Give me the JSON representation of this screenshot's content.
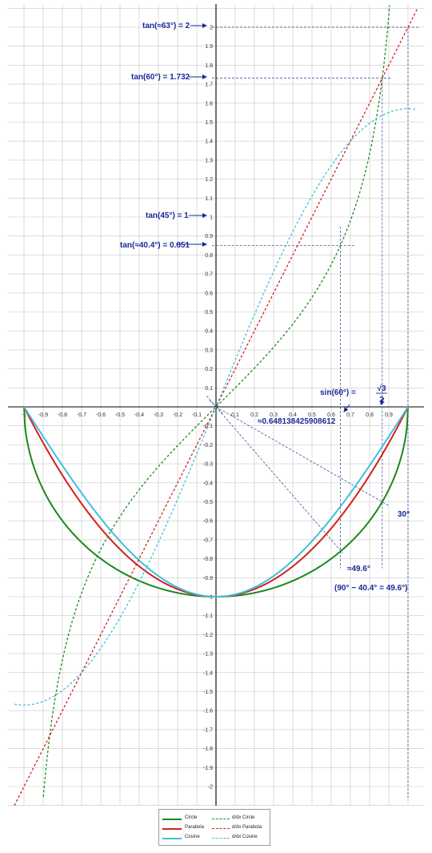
{
  "chart_data": {
    "type": "line",
    "xlim": [
      -1.05,
      1.05
    ],
    "ylim": [
      -2.15,
      2.1
    ],
    "x_ticks": [
      -1,
      -0.9,
      -0.8,
      -0.7,
      -0.6,
      -0.5,
      -0.4,
      -0.3,
      -0.2,
      -0.1,
      0.1,
      0.2,
      0.3,
      0.4,
      0.5,
      0.6,
      0.7,
      0.8,
      0.9,
      1
    ],
    "x_tick_labels": [
      "-1",
      "-0.9",
      "-0.8",
      "-0.7",
      "-0.6",
      "-0.5",
      "-0.4",
      "-0.3",
      "-0.2",
      "-0.1",
      "0.1",
      "0.2",
      "0.3",
      "0.4",
      "0.5",
      "0.6",
      "0.7",
      "0.8",
      "0.9",
      "1"
    ],
    "y_ticks": [
      2,
      1.9,
      1.8,
      1.7,
      1.6,
      1.5,
      1.4,
      1.3,
      1.2,
      1.1,
      1,
      0.9,
      0.8,
      0.7,
      0.6,
      0.5,
      0.4,
      0.3,
      0.2,
      0.1,
      -0.1,
      -0.2,
      -0.3,
      -0.4,
      -0.5,
      -0.6,
      -0.7,
      -0.8,
      -0.9,
      -1,
      -1.1,
      -1.2,
      -1.3,
      -1.4,
      -1.5,
      -1.6,
      -1.7,
      -1.8,
      -1.9,
      -2
    ],
    "y_tick_labels": [
      "2",
      "1.9",
      "1.8",
      "1.7",
      "1.6",
      "1.5",
      "1.4",
      "1.3",
      "1.2",
      "1.1",
      "1",
      "0.9",
      "0.8",
      "0.7",
      "0.6",
      "0.5",
      "0.4",
      "0.3",
      "0.2",
      "0.1",
      "-0.1",
      "-0.2",
      "-0.3",
      "-0.4",
      "-0.5",
      "-0.6",
      "-0.7",
      "-0.8",
      "-0.9",
      "-1",
      "-1.1",
      "-1.2",
      "-1.3",
      "-1.4",
      "-1.5",
      "-1.6",
      "-1.7",
      "-1.8",
      "-1.9",
      "-2"
    ],
    "grid": true,
    "legend_placement": "bottom-center",
    "series": [
      {
        "name": "Circle",
        "color": "#1a8a1a",
        "style": "solid",
        "formula": "y = -sqrt(1 - x^2)"
      },
      {
        "name": "Parabola",
        "color": "#d42020",
        "style": "solid",
        "formula": "y = x^2 - 1"
      },
      {
        "name": "Cosine",
        "color": "#40c0d8",
        "style": "solid",
        "formula": "y = -cos(pi*x/2)"
      },
      {
        "name": "d/dx Circle",
        "color": "#1a8a1a",
        "style": "dashed",
        "formula": "y = x / sqrt(1 - x^2)"
      },
      {
        "name": "d/dx Parabola",
        "color": "#d42020",
        "style": "dashed",
        "formula": "y = 2x"
      },
      {
        "name": "d/dx Cosine",
        "color": "#40c0d8",
        "style": "dashed",
        "formula": "y = (pi/2) sin(pi*x/2)"
      }
    ],
    "annotations": [
      {
        "text": "tan(≈63°) = 2",
        "y": 2
      },
      {
        "text": "tan(60°) = 1.732",
        "y": 1.732
      },
      {
        "text": "tan(45°) = 1",
        "y": 1
      },
      {
        "text": "tan(≈40.4°) = 0.851",
        "y": 0.851
      },
      {
        "text": "sin(60°) =",
        "x": 0.866
      },
      {
        "text": "√3",
        "x": 0.866
      },
      {
        "text": "2",
        "x": 0.866
      },
      {
        "text": "≈0.648138425908612",
        "x": 0.648
      },
      {
        "text": "30°"
      },
      {
        "text": "≈49.6°"
      },
      {
        "text": "(90° − 40.4° = 49.6°)"
      }
    ]
  },
  "legend": {
    "items": [
      "Circle",
      "Parabola",
      "Cosine",
      "d/dx Circle",
      "d/dx Parabola",
      "d/dx Cosine"
    ]
  }
}
